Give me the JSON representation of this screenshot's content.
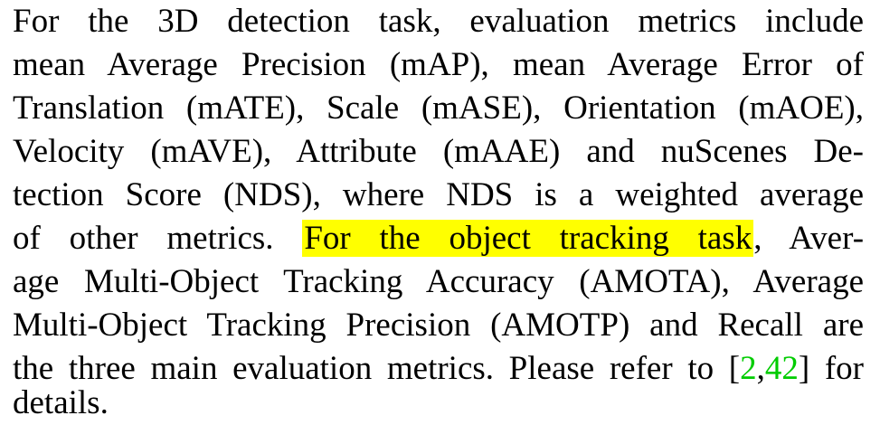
{
  "paragraph": {
    "line1": "For the 3D detection task, evaluation metrics include",
    "line2": "mean Average Precision (mAP), mean Average Error of",
    "line3": "Translation (mATE), Scale (mASE), Orientation (mAOE),",
    "line4": "Velocity (mAVE), Attribute (mAAE) and nuScenes De-",
    "line5": "tection Score (NDS), where NDS is a weighted average",
    "line6_pre": "of other metrics.",
    "line6_highlight": "For the object tracking task",
    "line6_post": ", Aver-",
    "line7": "age Multi-Object Tracking Accuracy (AMOTA), Average",
    "line8": "Multi-Object Tracking Precision (AMOTP) and Recall are",
    "line9_pre": "the three main evaluation metrics. Please refer to",
    "line9_open_bracket": "[",
    "line9_cite1": "2",
    "line9_comma": ",",
    "line9_cite2": "42",
    "line9_close_bracket": "]",
    "line9_post": "for",
    "line10": "details."
  },
  "colors": {
    "highlight": "#ffff00",
    "citation": "#00cc00",
    "text": "#000000"
  }
}
